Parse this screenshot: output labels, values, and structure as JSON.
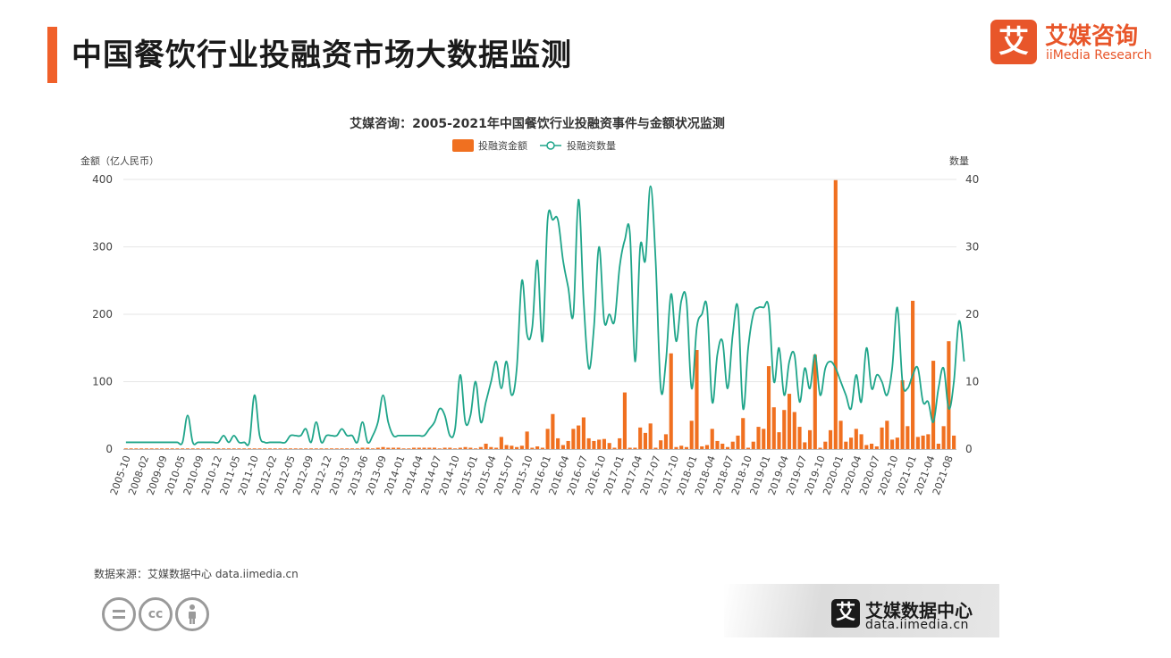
{
  "header": {
    "title": "中国餐饮行业投融资市场大数据监测",
    "brand_cn": "艾媒咨询",
    "brand_en": "iiMedia Research",
    "brand_glyph": "艾"
  },
  "footer": {
    "source": "数据来源：艾媒数据中心 data.iimedia.cn",
    "logo_cn": "艾媒数据中心",
    "logo_url": "data.iimedia.cn",
    "logo_glyph": "艾",
    "cc_icons": [
      "equals-icon",
      "cc-icon",
      "person-icon"
    ],
    "cc_label": "cc"
  },
  "chart_data": {
    "type": "bar",
    "title": "艾媒咨询：2005-2021年中国餐饮行业投融资事件与金额状况监测",
    "legend": {
      "placement": "top-center",
      "bar_label": "投融资金额",
      "line_label": "投融资数量"
    },
    "y_left": {
      "label": "金额（亿人民币）",
      "range": [
        0,
        400
      ],
      "ticks": [
        0,
        100,
        200,
        300,
        400
      ]
    },
    "y_right": {
      "label": "数量",
      "range": [
        0,
        40
      ],
      "ticks": [
        0,
        10,
        20,
        30,
        40
      ]
    },
    "x_tick_labels": [
      "2005-10",
      "2008-02",
      "2009-09",
      "2010-05",
      "2010-09",
      "2010-12",
      "2011-05",
      "2011-10",
      "2012-02",
      "2012-05",
      "2012-09",
      "2012-12",
      "2013-03",
      "2013-06",
      "2013-09",
      "2014-01",
      "2014-04",
      "2014-07",
      "2014-10",
      "2015-01",
      "2015-04",
      "2015-07",
      "2015-10",
      "2016-01",
      "2016-04",
      "2016-07",
      "2016-10",
      "2017-01",
      "2017-04",
      "2017-07",
      "2017-10",
      "2018-01",
      "2018-04",
      "2018-07",
      "2018-10",
      "2019-01",
      "2019-04",
      "2019-07",
      "2019-10",
      "2020-01",
      "2020-04",
      "2020-07",
      "2020-10",
      "2021-01",
      "2021-04",
      "2021-08"
    ],
    "grid": true,
    "colors": {
      "bar": "#f07020",
      "line": "#1fa58a",
      "grid": "#e6e6e6",
      "axis_text": "#444444"
    },
    "series": [
      {
        "name": "投融资金额",
        "type": "bar",
        "axis": "left",
        "values": [
          1,
          1,
          1,
          1,
          1,
          1,
          1,
          1,
          1,
          1,
          1,
          1,
          1,
          1,
          1,
          1,
          1,
          1,
          1,
          1,
          1,
          1,
          1,
          1,
          1,
          1,
          1,
          1,
          1,
          1,
          1,
          1,
          1,
          1,
          1,
          1,
          1,
          1,
          1,
          1,
          1,
          1,
          1,
          1,
          1,
          1,
          2,
          2,
          1,
          2,
          3,
          2,
          2,
          2,
          1,
          1,
          2,
          2,
          2,
          2,
          2,
          1,
          2,
          2,
          1,
          2,
          3,
          2,
          1,
          3,
          8,
          3,
          2,
          18,
          6,
          5,
          3,
          5,
          26,
          2,
          4,
          2,
          30,
          52,
          16,
          6,
          12,
          30,
          35,
          47,
          16,
          12,
          14,
          15,
          9,
          2,
          16,
          84,
          2,
          2,
          32,
          24,
          38,
          2,
          13,
          22,
          142,
          3,
          5,
          3,
          42,
          147,
          4,
          6,
          30,
          12,
          8,
          3,
          11,
          20,
          46,
          2,
          11,
          33,
          30,
          123,
          62,
          25,
          58,
          82,
          55,
          33,
          10,
          28,
          140,
          2,
          11,
          28,
          399,
          42,
          11,
          17,
          30,
          22,
          6,
          8,
          4,
          32,
          42,
          14,
          17,
          102,
          34,
          220,
          18,
          20,
          22,
          131,
          8,
          34,
          160,
          20
        ]
      },
      {
        "name": "投融资数量",
        "type": "line",
        "axis": "right",
        "values": [
          1,
          1,
          1,
          1,
          1,
          1,
          1,
          1,
          1,
          1,
          1,
          1,
          5,
          1,
          1,
          1,
          1,
          1,
          1,
          2,
          1,
          2,
          1,
          1,
          1,
          8,
          2,
          1,
          1,
          1,
          1,
          1,
          2,
          2,
          2,
          3,
          1,
          4,
          1,
          2,
          2,
          2,
          3,
          2,
          2,
          1,
          4,
          1,
          2,
          4,
          8,
          4,
          2,
          2,
          2,
          2,
          2,
          2,
          2,
          3,
          4,
          6,
          5,
          2,
          3,
          11,
          4,
          5,
          10,
          4,
          7,
          10,
          13,
          9,
          13,
          8,
          12,
          25,
          17,
          18,
          28,
          16,
          34,
          34,
          34,
          28,
          24,
          20,
          37,
          22,
          12,
          18,
          30,
          19,
          20,
          19,
          27,
          31,
          32,
          13,
          30,
          28,
          39,
          28,
          9,
          13,
          23,
          16,
          22,
          22,
          9,
          18,
          20,
          21,
          7,
          14,
          16,
          9,
          17,
          21,
          6,
          15,
          20,
          21,
          21,
          21,
          10,
          15,
          8,
          13,
          14,
          7,
          12,
          9,
          14,
          8,
          12,
          13,
          12,
          10,
          8,
          6,
          11,
          7,
          15,
          9,
          11,
          10,
          8,
          12,
          21,
          10,
          9,
          11,
          12,
          7,
          7,
          4,
          9,
          12,
          6,
          10,
          19,
          13
        ]
      }
    ]
  }
}
